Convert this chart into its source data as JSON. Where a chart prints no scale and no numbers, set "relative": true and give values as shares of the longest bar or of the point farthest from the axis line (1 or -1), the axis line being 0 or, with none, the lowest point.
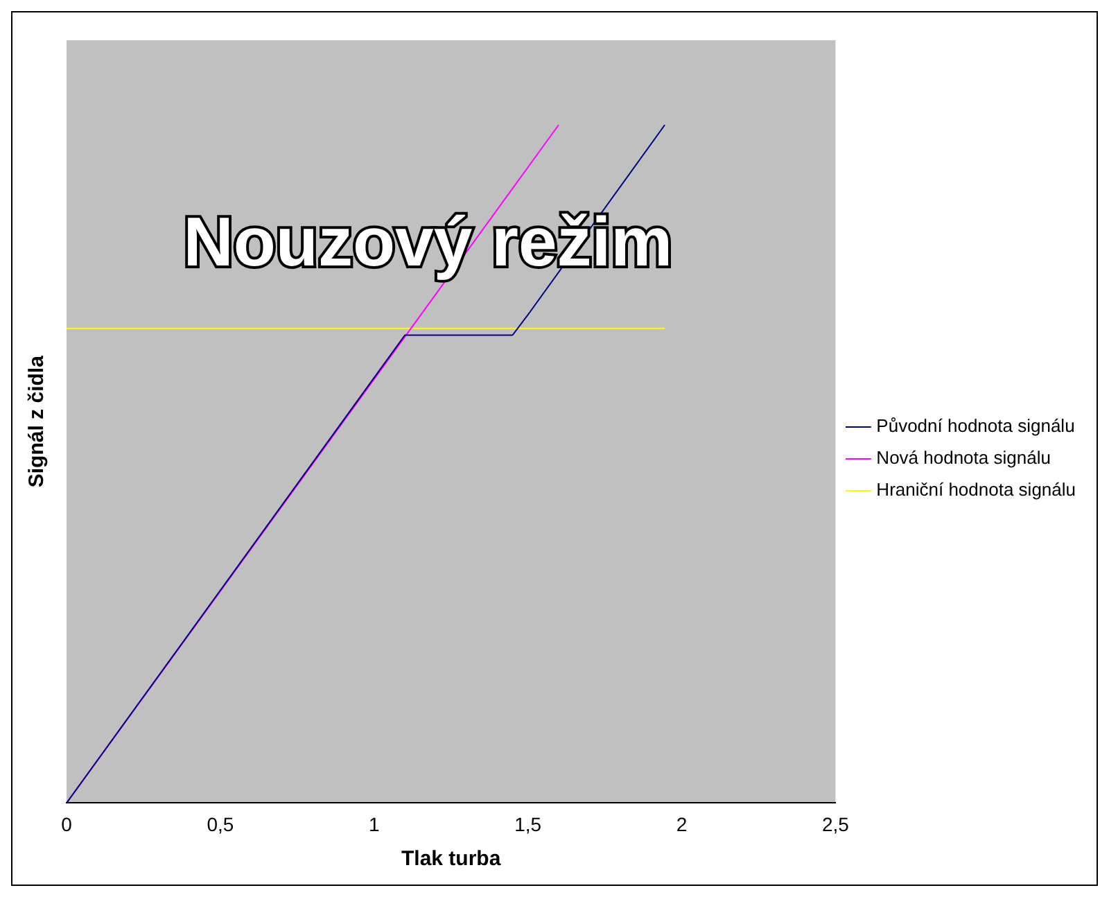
{
  "chart_data": {
    "type": "line",
    "relative": true,
    "xlabel": "Tlak turba",
    "ylabel": "Signál z čidla",
    "annotations": [
      "Nouzový režim"
    ],
    "xlim": [
      0,
      2.5
    ],
    "xticks": [
      0,
      {
        "value": 0.5,
        "label": "0,5"
      },
      1,
      {
        "value": 1.5,
        "label": "1,5"
      },
      2,
      {
        "value": 2.5,
        "label": "2,5"
      }
    ],
    "grid": false,
    "legend": "right",
    "marker": "none",
    "line_style": "solid",
    "series": [
      {
        "name": "Původní hodnota signálu",
        "color": "#000080",
        "x": [
          0,
          1.1,
          1.45,
          1.5,
          1.945
        ],
        "values": [
          0,
          0.69,
          0.69,
          0.72,
          1
        ]
      },
      {
        "name": "Nová hodnota signálu",
        "color": "#ff00ff",
        "x": [
          0,
          1.6
        ],
        "values": [
          0,
          1
        ]
      },
      {
        "name": "Hraniční hodnota signálu",
        "color": "#ffff00",
        "x": [
          0,
          1.945
        ],
        "values": [
          0.7,
          0.7
        ]
      }
    ]
  }
}
